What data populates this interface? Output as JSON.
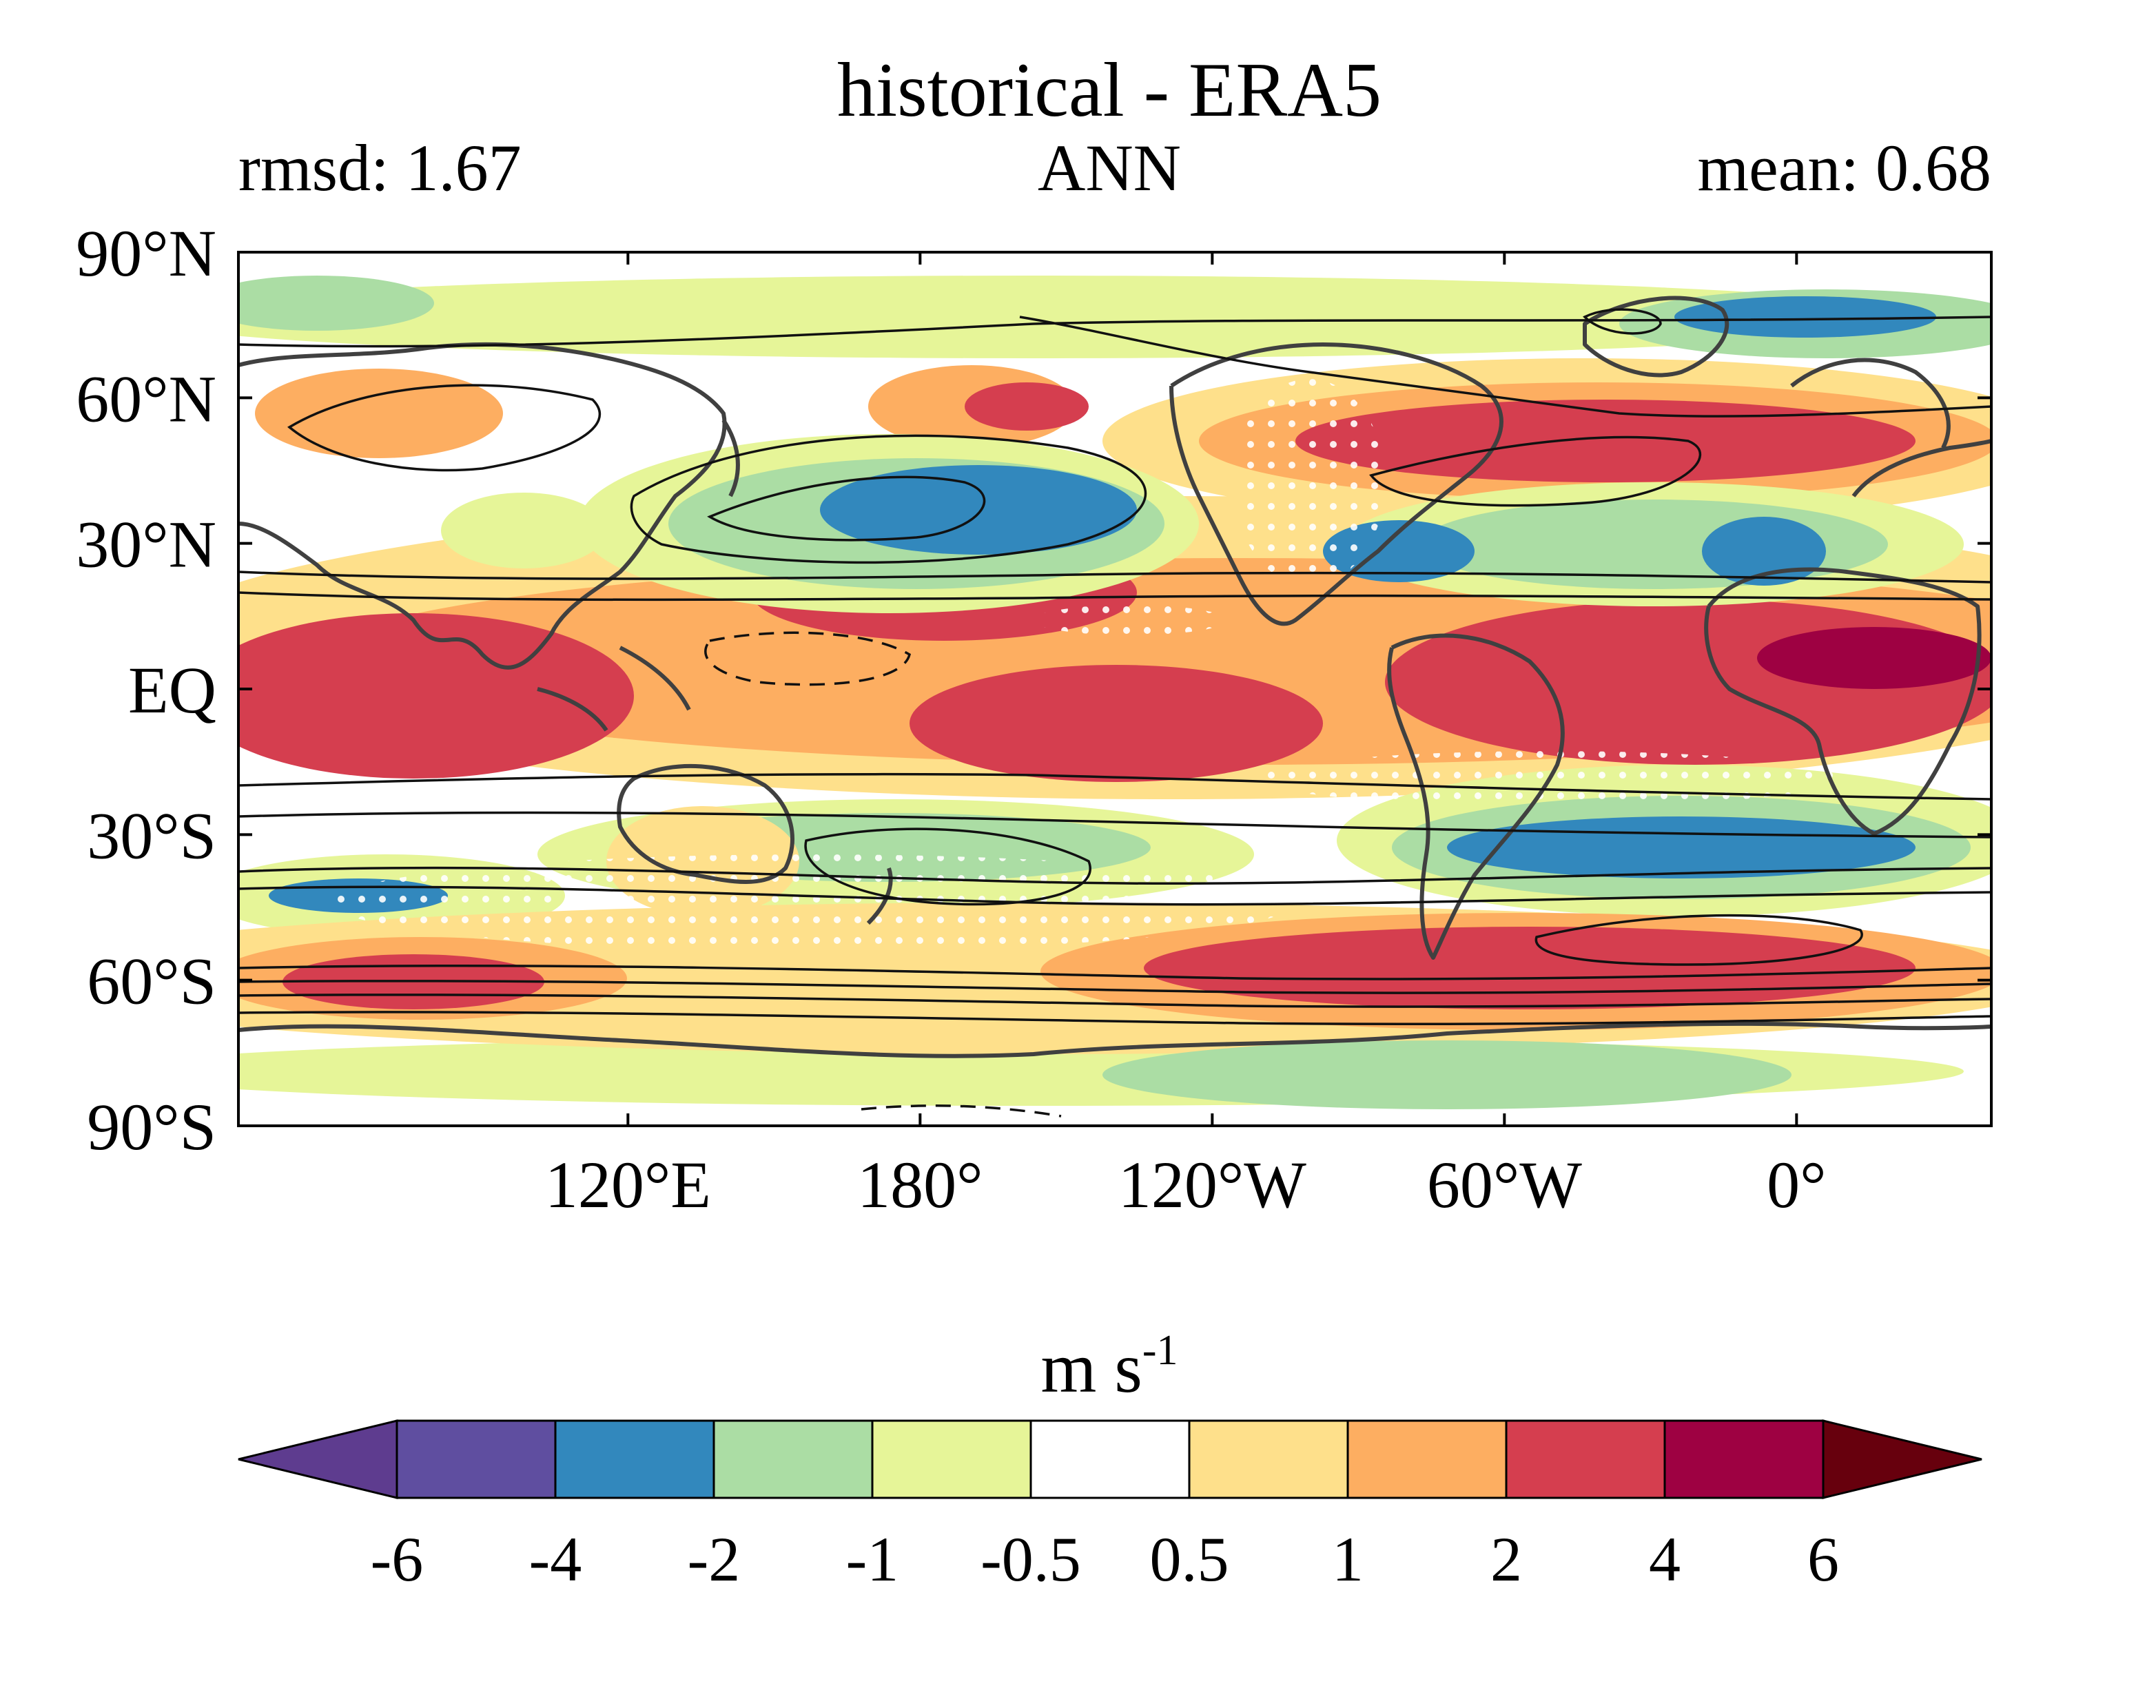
{
  "header": {
    "title": "historical - ERA5",
    "left_stat": "rmsd: 1.67",
    "season": "ANN",
    "right_stat": "mean: 0.68"
  },
  "map": {
    "lat_labels": [
      "90°N",
      "60°N",
      "30°N",
      "EQ",
      "30°S",
      "60°S",
      "90°S"
    ],
    "lon_labels": [
      "120°E",
      "180°",
      "120°W",
      "60°W",
      "0°"
    ],
    "lat_values": [
      90,
      60,
      30,
      0,
      -30,
      -60,
      -90
    ],
    "lon_values": [
      120,
      180,
      240,
      300,
      360
    ],
    "lon_range": [
      40,
      400
    ],
    "lat_range": [
      -90,
      90
    ]
  },
  "colorbar": {
    "unit_base": "m s",
    "unit_exp": "-1",
    "boundaries": [
      "-6",
      "-4",
      "-2",
      "-1",
      "-0.5",
      "0.5",
      "1",
      "2",
      "4",
      "6"
    ],
    "colors": [
      "#5e3c8f",
      "#5f4ea0",
      "#3288bd",
      "#abdda4",
      "#e6f598",
      "#ffffff",
      "#fee08b",
      "#fdae61",
      "#d53e4f",
      "#9e0142",
      "#67000d"
    ]
  }
}
